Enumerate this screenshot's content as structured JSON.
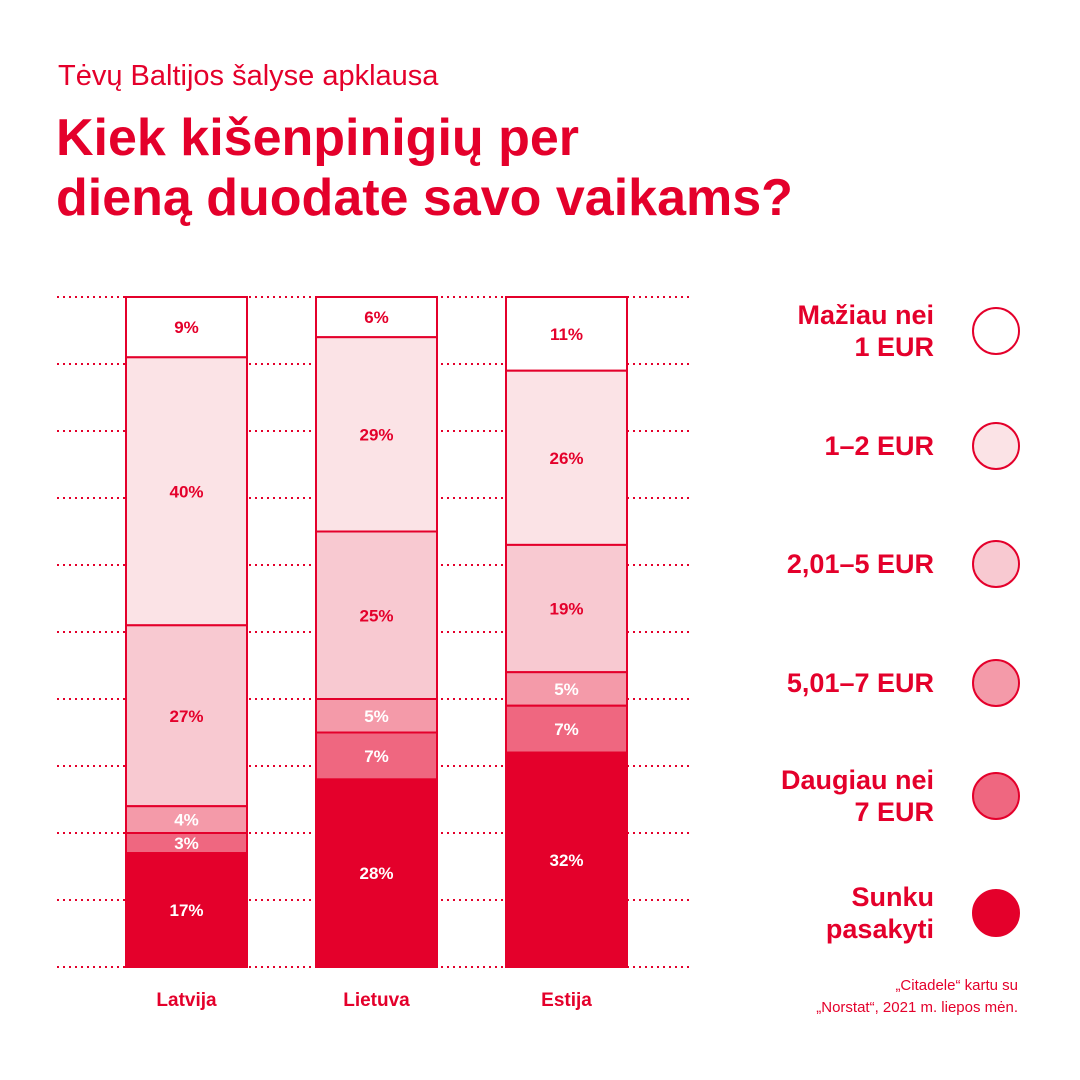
{
  "header": {
    "subtitle": "Tėvų Baltijos šalyse apklausa",
    "title_lines": [
      "Kiek kišenpinigių per",
      "dieną duodate savo vaikams?"
    ]
  },
  "colors": {
    "accent": "#e4002b",
    "segments": [
      "#ffffff",
      "#fbe3e6",
      "#f8c9d1",
      "#f49aa9",
      "#ef6780",
      "#e4002b"
    ]
  },
  "chart_data": {
    "type": "bar",
    "stacked": true,
    "categories": [
      "Latvija",
      "Lietuva",
      "Estija"
    ],
    "ylim": [
      0,
      100
    ],
    "series": [
      {
        "name": "Mažiau nei 1 EUR",
        "values": [
          9,
          6,
          11
        ]
      },
      {
        "name": "1–2 EUR",
        "values": [
          40,
          29,
          26
        ]
      },
      {
        "name": "2,01–5 EUR",
        "values": [
          27,
          25,
          19
        ]
      },
      {
        "name": "5,01–7 EUR",
        "values": [
          4,
          5,
          5
        ]
      },
      {
        "name": "Daugiau nei 7 EUR",
        "values": [
          3,
          7,
          7
        ]
      },
      {
        "name": "Sunku pasakyti",
        "values": [
          17,
          28,
          32
        ]
      }
    ],
    "legend_position": "right"
  },
  "legend": [
    {
      "label": "Mažiau nei\n1 EUR"
    },
    {
      "label": "1–2 EUR"
    },
    {
      "label": "2,01–5 EUR"
    },
    {
      "label": "5,01–7 EUR"
    },
    {
      "label": "Daugiau nei\n7 EUR"
    },
    {
      "label": "Sunku\npasakyti"
    }
  ],
  "source_lines": [
    "„Citadele“ kartu su",
    "„Norstat“, 2021 m. liepos mėn."
  ]
}
